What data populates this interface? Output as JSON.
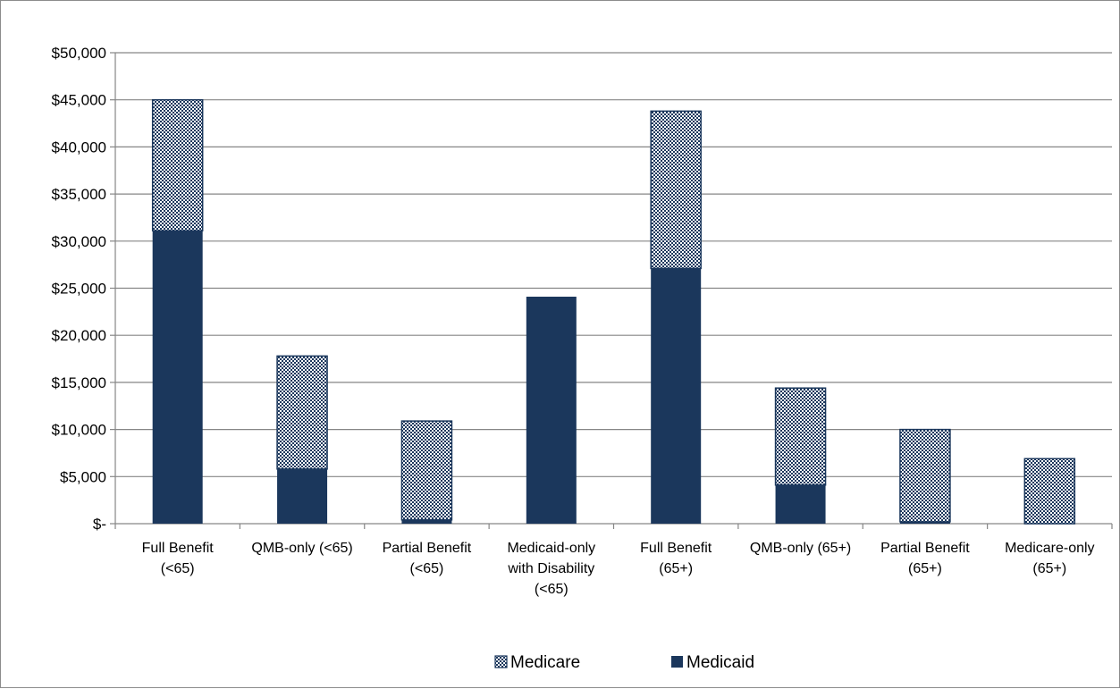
{
  "chart_data": {
    "type": "bar",
    "stacked": true,
    "title": "",
    "xlabel": "",
    "ylabel": "",
    "ylim": [
      0,
      50000
    ],
    "y_tick_step": 5000,
    "y_tick_labels": [
      "$-",
      "$5,000",
      "$10,000",
      "$15,000",
      "$20,000",
      "$25,000",
      "$30,000",
      "$35,000",
      "$40,000",
      "$45,000",
      "$50,000"
    ],
    "grid": true,
    "legend_position": "bottom",
    "categories": [
      [
        "Full Benefit",
        "(<65)"
      ],
      [
        "QMB-only (<65)"
      ],
      [
        "Partial Benefit",
        "(<65)"
      ],
      [
        "Medicaid-only",
        "with Disability",
        "(<65)"
      ],
      [
        "Full Benefit",
        "(65+)"
      ],
      [
        "QMB-only (65+)"
      ],
      [
        "Partial Benefit",
        "(65+)"
      ],
      [
        "Medicare-only",
        "(65+)"
      ]
    ],
    "series": [
      {
        "name": "Medicaid",
        "color": "#1b375c",
        "pattern": "solid",
        "values": [
          31100,
          5800,
          400,
          24100,
          27100,
          4100,
          200,
          0
        ]
      },
      {
        "name": "Medicare",
        "color": "#1b375c",
        "pattern": "dotted",
        "values": [
          13900,
          12000,
          10500,
          0,
          16700,
          10300,
          9800,
          6900
        ]
      }
    ],
    "legend": [
      {
        "name": "Medicare",
        "pattern": "dotted"
      },
      {
        "name": "Medicaid",
        "pattern": "solid"
      }
    ]
  }
}
